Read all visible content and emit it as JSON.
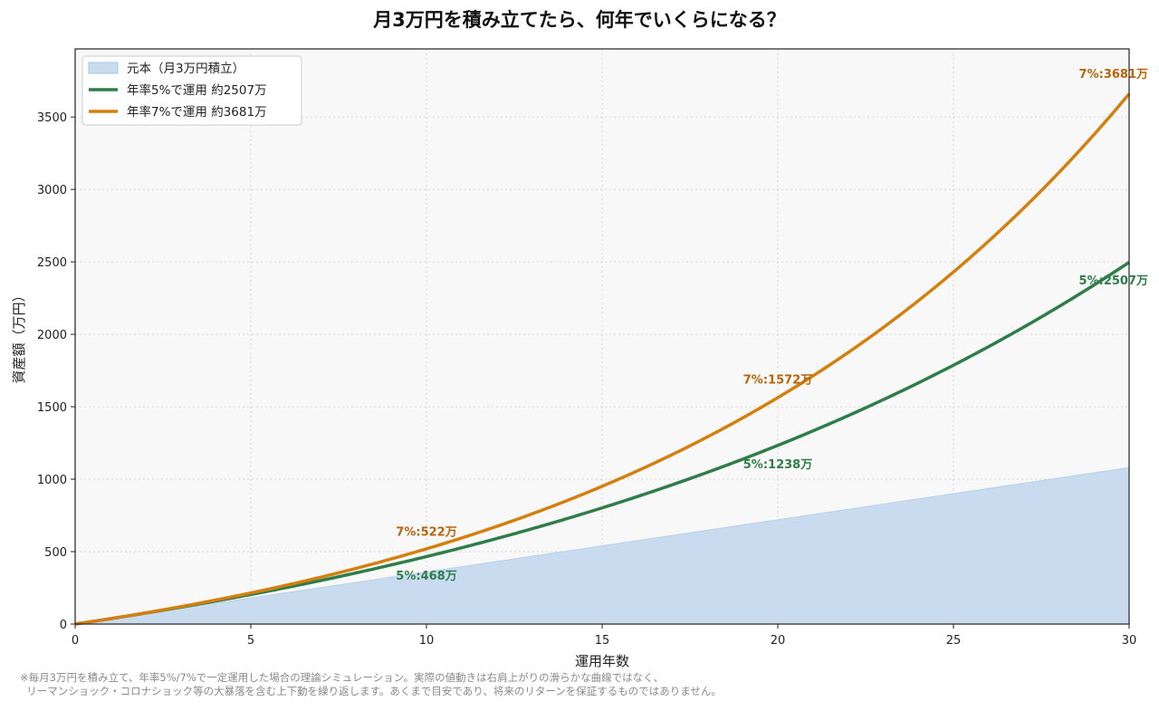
{
  "title": "月3万円を積み立てたら、何年でいくらになる？",
  "footnote": {
    "line1": "※毎月3万円を積み立て、年率5%/7%で一定運用した場合の理論シミュレーション。実際の値動きは右肩上がりの滑らかな曲線ではなく、",
    "line2": "  リーマンショック・コロナショック等の大暴落を含む上下動を繰り返します。あくまで目安であり、将来のリターンを保証するものではありません。"
  },
  "chart_data": {
    "type": "line",
    "xlabel": "運用年数",
    "ylabel": "資産額（万円）",
    "xlim": [
      0,
      30
    ],
    "ylim": [
      0,
      3970
    ],
    "xticks": [
      0,
      5,
      10,
      15,
      20,
      25,
      30
    ],
    "yticks": [
      0,
      500,
      1000,
      1500,
      2000,
      2500,
      3000,
      3500
    ],
    "grid": true,
    "legend_position": "top-left",
    "monthly_contribution": 3,
    "series": [
      {
        "name": "元本（月3万円積立）",
        "type": "area",
        "rate": 0,
        "color": "#c9dcef",
        "x": [
          0,
          5,
          10,
          15,
          20,
          25,
          30
        ],
        "values": [
          0,
          180,
          360,
          540,
          720,
          900,
          1080
        ]
      },
      {
        "name": "年率5%で運用  約2507万",
        "type": "line",
        "rate": 0.05,
        "color": "#2e7d4a",
        "x": [
          0,
          5,
          10,
          15,
          20,
          25,
          30
        ],
        "values": [
          0,
          204,
          468,
          804,
          1238,
          1795,
          2507
        ]
      },
      {
        "name": "年率7%で運用  約3681万",
        "type": "line",
        "rate": 0.07,
        "color": "#d4800f",
        "x": [
          0,
          5,
          10,
          15,
          20,
          25,
          30
        ],
        "values": [
          0,
          216,
          522,
          951,
          1572,
          2442,
          3681
        ]
      }
    ],
    "annotations": [
      {
        "text": "7%:522万",
        "x": 10,
        "y": 522,
        "color": "#b8650a"
      },
      {
        "text": "5%:468万",
        "x": 10,
        "y": 468,
        "color": "#2e7d4a"
      },
      {
        "text": "7%:1572万",
        "x": 20,
        "y": 1572,
        "color": "#b8650a"
      },
      {
        "text": "5%:1238万",
        "x": 20,
        "y": 1238,
        "color": "#2e7d4a"
      },
      {
        "text": "7%:3681万",
        "x": 30,
        "y": 3681,
        "color": "#b8650a"
      },
      {
        "text": "5%:2507万",
        "x": 30,
        "y": 2507,
        "color": "#2e7d4a"
      }
    ]
  }
}
